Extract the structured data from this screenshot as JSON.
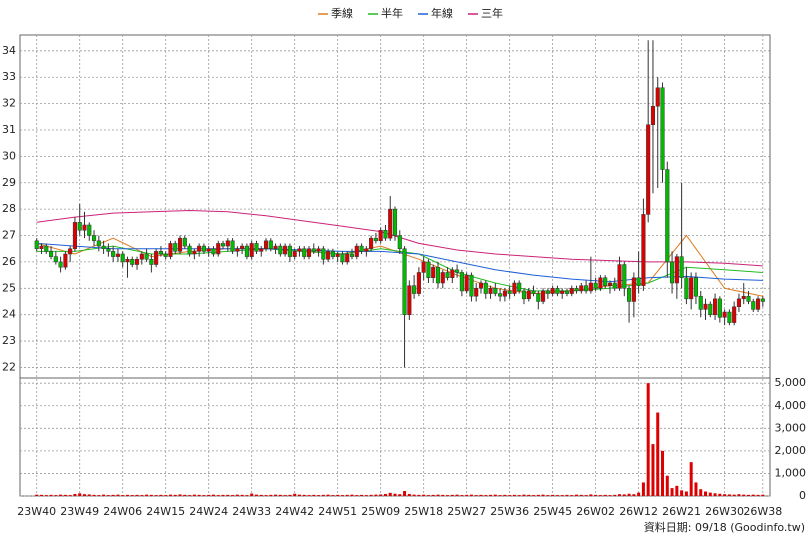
{
  "chart_data": {
    "type": "candlestick",
    "legend_position": "top",
    "grid": true,
    "categories": [
      "23W40",
      null,
      null,
      null,
      null,
      null,
      null,
      null,
      null,
      "23W49",
      null,
      null,
      null,
      null,
      null,
      null,
      null,
      null,
      "24W06",
      null,
      null,
      null,
      null,
      null,
      null,
      null,
      null,
      "24W15",
      null,
      null,
      null,
      null,
      null,
      null,
      null,
      null,
      "24W24",
      null,
      null,
      null,
      null,
      null,
      null,
      null,
      null,
      "24W33",
      null,
      null,
      null,
      null,
      null,
      null,
      null,
      null,
      "24W42",
      null,
      null,
      null,
      null,
      null,
      null,
      null,
      null,
      "24W51",
      null,
      null,
      null,
      null,
      null,
      null,
      null,
      null,
      "25W09",
      null,
      null,
      null,
      null,
      null,
      null,
      null,
      null,
      "25W18",
      null,
      null,
      null,
      null,
      null,
      null,
      null,
      null,
      "25W27",
      null,
      null,
      null,
      null,
      null,
      null,
      null,
      null,
      "25W36",
      null,
      null,
      null,
      null,
      null,
      null,
      null,
      null,
      "25W45",
      null,
      null,
      null,
      null,
      null,
      null,
      null,
      null,
      "26W02",
      null,
      null,
      null,
      null,
      null,
      null,
      null,
      null,
      "26W12",
      null,
      null,
      null,
      null,
      null,
      null,
      null,
      null,
      "26W21",
      null,
      null,
      null,
      null,
      null,
      null,
      null,
      null,
      "26W30",
      null,
      null,
      null,
      null,
      null,
      null,
      null,
      "26W38"
    ],
    "candles": [
      [
        26.8,
        26.9,
        26.4,
        26.5
      ],
      [
        26.5,
        26.7,
        26.3,
        26.6
      ],
      [
        26.6,
        26.7,
        26.3,
        26.4
      ],
      [
        26.4,
        26.6,
        26.1,
        26.2
      ],
      [
        26.2,
        26.4,
        25.9,
        26.0
      ],
      [
        26.0,
        26.2,
        25.6,
        25.8
      ],
      [
        25.8,
        26.4,
        25.7,
        26.3
      ],
      [
        26.3,
        26.6,
        26.0,
        26.5
      ],
      [
        26.5,
        27.7,
        26.4,
        27.5
      ],
      [
        27.5,
        28.2,
        27.0,
        27.2
      ],
      [
        27.2,
        27.9,
        26.9,
        27.4
      ],
      [
        27.4,
        27.5,
        26.8,
        27.0
      ],
      [
        27.0,
        27.2,
        26.6,
        26.8
      ],
      [
        26.8,
        27.0,
        26.4,
        26.6
      ],
      [
        26.6,
        26.8,
        26.3,
        26.5
      ],
      [
        26.5,
        26.7,
        26.2,
        26.4
      ],
      [
        26.4,
        26.6,
        26.0,
        26.2
      ],
      [
        26.2,
        26.5,
        26.0,
        26.3
      ],
      [
        26.3,
        26.4,
        25.8,
        26.0
      ],
      [
        26.0,
        26.2,
        25.4,
        26.1
      ],
      [
        26.1,
        26.2,
        25.8,
        25.9
      ],
      [
        25.9,
        26.2,
        25.7,
        26.1
      ],
      [
        26.1,
        26.4,
        25.9,
        26.3
      ],
      [
        26.3,
        26.5,
        26.0,
        26.1
      ],
      [
        26.1,
        26.3,
        25.6,
        25.9
      ],
      [
        25.9,
        26.5,
        25.8,
        26.4
      ],
      [
        26.4,
        26.6,
        26.2,
        26.3
      ],
      [
        26.3,
        26.4,
        26.1,
        26.2
      ],
      [
        26.2,
        26.8,
        26.1,
        26.7
      ],
      [
        26.7,
        26.8,
        26.3,
        26.4
      ],
      [
        26.4,
        27.0,
        26.3,
        26.9
      ],
      [
        26.9,
        27.0,
        26.5,
        26.6
      ],
      [
        26.6,
        26.7,
        26.2,
        26.3
      ],
      [
        26.3,
        26.5,
        26.1,
        26.4
      ],
      [
        26.4,
        26.7,
        26.2,
        26.6
      ],
      [
        26.6,
        26.7,
        26.3,
        26.4
      ],
      [
        26.4,
        26.6,
        26.2,
        26.5
      ],
      [
        26.5,
        26.6,
        26.2,
        26.3
      ],
      [
        26.3,
        26.8,
        26.2,
        26.7
      ],
      [
        26.7,
        26.8,
        26.5,
        26.6
      ],
      [
        26.6,
        26.9,
        26.4,
        26.8
      ],
      [
        26.8,
        26.9,
        26.3,
        26.4
      ],
      [
        26.4,
        26.6,
        26.2,
        26.5
      ],
      [
        26.5,
        26.7,
        26.3,
        26.6
      ],
      [
        26.6,
        26.7,
        26.1,
        26.2
      ],
      [
        26.2,
        26.8,
        26.1,
        26.7
      ],
      [
        26.7,
        26.8,
        26.3,
        26.4
      ],
      [
        26.4,
        26.6,
        26.2,
        26.5
      ],
      [
        26.5,
        26.9,
        26.4,
        26.8
      ],
      [
        26.8,
        26.9,
        26.4,
        26.5
      ],
      [
        26.5,
        26.7,
        26.3,
        26.6
      ],
      [
        26.6,
        26.7,
        26.2,
        26.3
      ],
      [
        26.3,
        26.7,
        26.2,
        26.6
      ],
      [
        26.6,
        26.7,
        26.0,
        26.2
      ],
      [
        26.2,
        26.5,
        26.1,
        26.4
      ],
      [
        26.4,
        26.6,
        26.2,
        26.5
      ],
      [
        26.5,
        26.6,
        26.1,
        26.2
      ],
      [
        26.2,
        26.6,
        26.1,
        26.5
      ],
      [
        26.5,
        26.7,
        26.3,
        26.4
      ],
      [
        26.4,
        26.6,
        26.2,
        26.5
      ],
      [
        26.5,
        26.6,
        25.9,
        26.1
      ],
      [
        26.1,
        26.5,
        26.0,
        26.4
      ],
      [
        26.4,
        26.5,
        26.1,
        26.2
      ],
      [
        26.2,
        26.4,
        26.0,
        26.3
      ],
      [
        26.3,
        26.4,
        25.9,
        26.0
      ],
      [
        26.0,
        26.4,
        25.9,
        26.3
      ],
      [
        26.3,
        26.5,
        26.1,
        26.2
      ],
      [
        26.2,
        26.7,
        26.1,
        26.6
      ],
      [
        26.6,
        26.7,
        26.3,
        26.4
      ],
      [
        26.4,
        26.6,
        26.2,
        26.5
      ],
      [
        26.5,
        27.0,
        26.4,
        26.9
      ],
      [
        26.9,
        27.1,
        26.7,
        26.8
      ],
      [
        26.8,
        27.3,
        26.7,
        27.2
      ],
      [
        27.2,
        27.4,
        26.8,
        26.9
      ],
      [
        26.9,
        28.5,
        26.8,
        28.0
      ],
      [
        28.0,
        28.1,
        26.8,
        27.0
      ],
      [
        27.0,
        27.2,
        26.3,
        26.5
      ],
      [
        26.5,
        26.6,
        22.0,
        24.0
      ],
      [
        24.0,
        25.3,
        23.8,
        25.1
      ],
      [
        25.1,
        25.5,
        24.6,
        24.8
      ],
      [
        24.8,
        25.8,
        24.7,
        25.6
      ],
      [
        25.6,
        26.2,
        25.3,
        26.0
      ],
      [
        26.0,
        26.1,
        25.2,
        25.4
      ],
      [
        25.4,
        25.9,
        25.2,
        25.8
      ],
      [
        25.8,
        26.0,
        25.0,
        25.2
      ],
      [
        25.2,
        25.7,
        25.0,
        25.6
      ],
      [
        25.6,
        25.8,
        25.3,
        25.4
      ],
      [
        25.4,
        25.8,
        25.2,
        25.7
      ],
      [
        25.7,
        25.9,
        25.4,
        25.6
      ],
      [
        25.6,
        25.7,
        24.7,
        24.9
      ],
      [
        24.9,
        25.6,
        24.8,
        25.5
      ],
      [
        25.5,
        25.6,
        24.5,
        24.7
      ],
      [
        24.7,
        25.2,
        24.5,
        25.0
      ],
      [
        25.0,
        25.3,
        24.8,
        25.2
      ],
      [
        25.2,
        25.3,
        24.6,
        24.8
      ],
      [
        24.8,
        25.1,
        24.6,
        25.0
      ],
      [
        25.0,
        25.2,
        24.7,
        24.8
      ],
      [
        24.8,
        25.0,
        24.5,
        24.7
      ],
      [
        24.7,
        25.0,
        24.5,
        24.9
      ],
      [
        24.9,
        25.1,
        24.6,
        24.8
      ],
      [
        24.8,
        25.3,
        24.7,
        25.2
      ],
      [
        25.2,
        25.3,
        24.8,
        24.9
      ],
      [
        24.9,
        25.0,
        24.4,
        24.6
      ],
      [
        24.6,
        25.0,
        24.5,
        24.9
      ],
      [
        24.9,
        25.1,
        24.7,
        24.8
      ],
      [
        24.8,
        24.9,
        24.2,
        24.5
      ],
      [
        24.5,
        25.0,
        24.4,
        24.9
      ],
      [
        24.9,
        25.0,
        24.6,
        24.8
      ],
      [
        24.8,
        25.1,
        24.7,
        25.0
      ],
      [
        25.0,
        25.1,
        24.7,
        24.8
      ],
      [
        24.8,
        25.0,
        24.6,
        24.9
      ],
      [
        24.9,
        25.0,
        24.7,
        24.8
      ],
      [
        24.8,
        25.1,
        24.7,
        25.0
      ],
      [
        25.0,
        25.1,
        24.8,
        24.9
      ],
      [
        24.9,
        25.2,
        24.8,
        25.1
      ],
      [
        25.1,
        25.3,
        24.8,
        24.9
      ],
      [
        24.9,
        26.2,
        24.8,
        25.2
      ],
      [
        25.2,
        25.4,
        24.9,
        25.0
      ],
      [
        25.0,
        25.5,
        24.9,
        25.4
      ],
      [
        25.4,
        25.5,
        25.0,
        25.1
      ],
      [
        25.1,
        25.3,
        24.8,
        25.2
      ],
      [
        25.2,
        25.4,
        24.9,
        25.0
      ],
      [
        25.0,
        26.2,
        24.9,
        25.9
      ],
      [
        25.9,
        26.0,
        24.7,
        25.0
      ],
      [
        25.0,
        25.1,
        23.7,
        24.5
      ],
      [
        24.5,
        25.6,
        23.9,
        25.4
      ],
      [
        25.4,
        26.4,
        24.8,
        25.1
      ],
      [
        25.1,
        28.4,
        24.9,
        27.8
      ],
      [
        27.8,
        34.4,
        27.5,
        31.2
      ],
      [
        31.2,
        34.4,
        28.6,
        31.9
      ],
      [
        31.9,
        33.0,
        28.8,
        32.6
      ],
      [
        32.6,
        32.8,
        29.0,
        29.5
      ],
      [
        29.5,
        29.8,
        25.4,
        26.0
      ],
      [
        26.0,
        26.4,
        24.8,
        25.2
      ],
      [
        25.2,
        26.3,
        24.6,
        26.2
      ],
      [
        26.2,
        29.0,
        25.0,
        25.4
      ],
      [
        25.4,
        25.8,
        24.4,
        24.6
      ],
      [
        24.6,
        25.6,
        24.2,
        25.4
      ],
      [
        25.4,
        25.6,
        24.4,
        24.7
      ],
      [
        24.7,
        24.9,
        23.9,
        24.2
      ],
      [
        24.2,
        24.6,
        23.8,
        24.4
      ],
      [
        24.4,
        24.5,
        23.9,
        24.0
      ],
      [
        24.0,
        24.8,
        23.8,
        24.6
      ],
      [
        24.6,
        24.7,
        23.7,
        23.9
      ],
      [
        23.9,
        24.2,
        23.6,
        24.1
      ],
      [
        24.1,
        24.2,
        23.6,
        23.7
      ],
      [
        23.7,
        24.5,
        23.6,
        24.3
      ],
      [
        24.3,
        24.8,
        24.1,
        24.6
      ],
      [
        24.6,
        25.2,
        24.4,
        24.7
      ],
      [
        24.7,
        24.9,
        24.4,
        24.5
      ],
      [
        24.5,
        24.6,
        24.1,
        24.2
      ],
      [
        24.2,
        24.7,
        24.1,
        24.6
      ],
      [
        24.6,
        24.7,
        24.3,
        24.5
      ]
    ],
    "up_color": "#dd0000",
    "down_color": "#00bb00",
    "xlim": [
      -3.5,
      153.5
    ],
    "ylim": [
      21.6,
      34.6
    ],
    "yticks": [
      22,
      23,
      24,
      25,
      26,
      27,
      28,
      29,
      30,
      31,
      32,
      33,
      34
    ],
    "ma_series": [
      {
        "name": "季線",
        "color": "#e07b20",
        "x": [
          0,
          8,
          16,
          24,
          32,
          40,
          48,
          56,
          64,
          72,
          80,
          88,
          96,
          104,
          112,
          120,
          128,
          136,
          144,
          152
        ],
        "values": [
          26.7,
          26.3,
          26.9,
          26.2,
          26.4,
          26.5,
          26.5,
          26.4,
          26.3,
          26.6,
          26.1,
          25.5,
          25.0,
          24.8,
          24.9,
          25.1,
          25.2,
          27.0,
          25.0,
          24.7
        ]
      },
      {
        "name": "半年",
        "color": "#22bb22",
        "x": [
          0,
          8,
          16,
          24,
          32,
          40,
          48,
          56,
          64,
          72,
          80,
          88,
          96,
          104,
          112,
          120,
          128,
          136,
          144,
          152
        ],
        "values": [
          26.4,
          26.4,
          26.6,
          26.3,
          26.3,
          26.4,
          26.5,
          26.4,
          26.3,
          26.5,
          26.3,
          25.6,
          25.2,
          24.9,
          24.9,
          25.0,
          25.2,
          25.8,
          25.7,
          25.6
        ]
      },
      {
        "name": "年線",
        "color": "#1f5fd6",
        "x": [
          0,
          8,
          16,
          24,
          32,
          40,
          48,
          56,
          64,
          72,
          80,
          88,
          96,
          104,
          112,
          120,
          128,
          136,
          144,
          152
        ],
        "values": [
          26.7,
          26.6,
          26.5,
          26.5,
          26.5,
          26.5,
          26.5,
          26.45,
          26.4,
          26.4,
          26.3,
          26.0,
          25.7,
          25.5,
          25.35,
          25.25,
          25.4,
          25.45,
          25.35,
          25.3
        ]
      },
      {
        "name": "三年",
        "color": "#cc2277",
        "x": [
          0,
          8,
          16,
          24,
          32,
          40,
          48,
          56,
          64,
          72,
          80,
          88,
          96,
          104,
          112,
          120,
          128,
          136,
          144,
          152
        ],
        "values": [
          27.5,
          27.7,
          27.85,
          27.9,
          27.95,
          27.9,
          27.75,
          27.55,
          27.35,
          27.15,
          26.7,
          26.45,
          26.3,
          26.2,
          26.1,
          26.05,
          26.0,
          26.0,
          25.95,
          25.85
        ]
      }
    ],
    "volume": {
      "color": "#dd0000",
      "ylim": [
        0,
        5230
      ],
      "yticks": [
        0,
        {
          "value": 1000,
          "label": "1,000"
        },
        {
          "value": 2000,
          "label": "2,000"
        },
        {
          "value": 3000,
          "label": "3,000"
        },
        {
          "value": 4000,
          "label": "4,000"
        },
        {
          "value": 5000,
          "label": "5,000"
        }
      ],
      "values": [
        60,
        50,
        40,
        50,
        40,
        60,
        50,
        40,
        90,
        120,
        80,
        70,
        50,
        40,
        60,
        40,
        50,
        60,
        40,
        50,
        40,
        50,
        40,
        60,
        50,
        40,
        50,
        40,
        60,
        50,
        70,
        50,
        40,
        60,
        50,
        40,
        50,
        60,
        40,
        50,
        50,
        40,
        60,
        50,
        40,
        110,
        60,
        50,
        40,
        50,
        60,
        50,
        40,
        50,
        100,
        60,
        50,
        40,
        50,
        40,
        50,
        60,
        40,
        50,
        40,
        50,
        60,
        40,
        50,
        40,
        50,
        60,
        70,
        90,
        140,
        100,
        80,
        220,
        90,
        60,
        50,
        60,
        40,
        50,
        60,
        50,
        40,
        50,
        60,
        40,
        50,
        60,
        40,
        50,
        40,
        50,
        60,
        40,
        50,
        40,
        50,
        40,
        60,
        50,
        40,
        50,
        60,
        40,
        50,
        40,
        40,
        50,
        40,
        60,
        50,
        40,
        70,
        50,
        40,
        50,
        40,
        50,
        80,
        70,
        100,
        80,
        150,
        600,
        5000,
        2300,
        3700,
        2000,
        900,
        350,
        450,
        250,
        200,
        1500,
        600,
        300,
        200,
        150,
        120,
        100,
        80,
        70,
        60,
        80,
        60,
        50,
        60,
        50,
        60
      ]
    }
  },
  "footer": "資料日期: 09/18  (Goodinfo.tw)"
}
